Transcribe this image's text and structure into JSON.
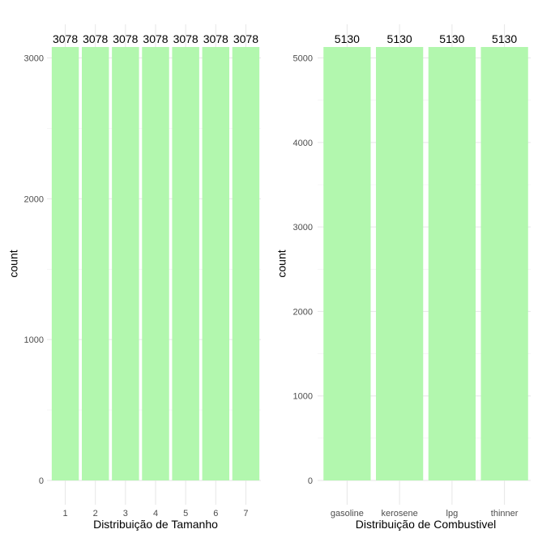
{
  "chart_data": [
    {
      "type": "bar",
      "categories": [
        "1",
        "2",
        "3",
        "4",
        "5",
        "6",
        "7"
      ],
      "values": [
        3078,
        3078,
        3078,
        3078,
        3078,
        3078,
        3078
      ],
      "data_labels": [
        "3078",
        "3078",
        "3078",
        "3078",
        "3078",
        "3078",
        "3078"
      ],
      "xlabel": "Distribuição de Tamanho",
      "ylabel": "count",
      "ylim": [
        0,
        3078
      ],
      "yticks": [
        0,
        1000,
        2000,
        3000
      ],
      "grid": true,
      "bar_color": "#b2f7ae"
    },
    {
      "type": "bar",
      "categories": [
        "gasoline",
        "kerosene",
        "lpg",
        "thinner"
      ],
      "values": [
        5130,
        5130,
        5130,
        5130
      ],
      "data_labels": [
        "5130",
        "5130",
        "5130",
        "5130"
      ],
      "xlabel": "Distribuição de Combustivel",
      "ylabel": "count",
      "ylim": [
        0,
        5130
      ],
      "yticks": [
        0,
        1000,
        2000,
        3000,
        4000,
        5000
      ],
      "grid": true,
      "bar_color": "#b2f7ae"
    }
  ]
}
